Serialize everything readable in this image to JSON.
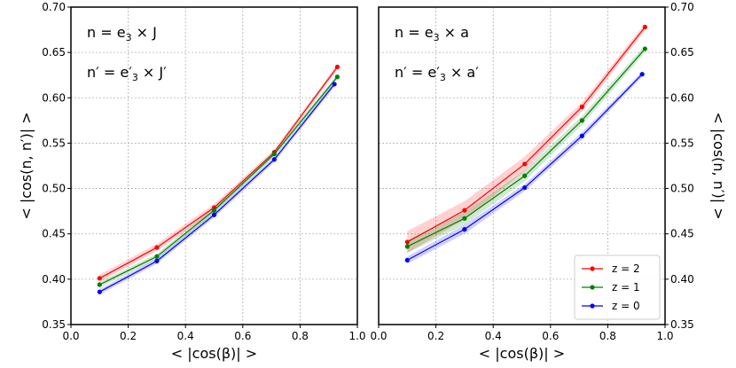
{
  "chart_data": [
    {
      "type": "line",
      "panel": "left",
      "xlabel": "< |cos(β)| >",
      "ylabel": "< |cos(n,  n′)| >",
      "ylabel_side": "left",
      "xlim": [
        0.0,
        1.0
      ],
      "ylim": [
        0.35,
        0.7
      ],
      "xticks": [
        "0.0",
        "0.2",
        "0.4",
        "0.6",
        "0.8",
        "1.0"
      ],
      "yticks": [
        "0.35",
        "0.40",
        "0.45",
        "0.50",
        "0.55",
        "0.60",
        "0.65",
        "0.70"
      ],
      "grid": true,
      "annotations": {
        "line1": {
          "lhs": "n = e",
          "sub": "3",
          "rhs": " × J"
        },
        "line2": {
          "lhs": "n′ = e′",
          "sub": "3",
          "rhs": " × J′"
        }
      },
      "series": [
        {
          "name": "z = 2",
          "color": "#ff0000",
          "x": [
            0.1,
            0.3,
            0.5,
            0.71,
            0.93
          ],
          "y": [
            0.401,
            0.435,
            0.479,
            0.54,
            0.634
          ],
          "band": [
            0.004,
            0.004,
            0.004,
            0.003,
            0.003
          ]
        },
        {
          "name": "z = 1",
          "color": "#008000",
          "x": [
            0.1,
            0.3,
            0.5,
            0.71,
            0.93
          ],
          "y": [
            0.394,
            0.425,
            0.476,
            0.538,
            0.623
          ],
          "band": [
            0.003,
            0.003,
            0.003,
            0.003,
            0.003
          ]
        },
        {
          "name": "z = 0",
          "color": "#0000ff",
          "x": [
            0.1,
            0.3,
            0.5,
            0.71,
            0.92
          ],
          "y": [
            0.386,
            0.42,
            0.471,
            0.532,
            0.615
          ],
          "band": [
            0.003,
            0.003,
            0.003,
            0.003,
            0.003
          ]
        }
      ]
    },
    {
      "type": "line",
      "panel": "right",
      "xlabel": "< |cos(β)| >",
      "ylabel": "< |cos(n,  n′)| >",
      "ylabel_side": "right",
      "xlim": [
        0.0,
        1.0
      ],
      "ylim": [
        0.35,
        0.7
      ],
      "xticks": [
        "0.0",
        "0.2",
        "0.4",
        "0.6",
        "0.8",
        "1.0"
      ],
      "yticks": [
        "0.35",
        "0.40",
        "0.45",
        "0.50",
        "0.55",
        "0.60",
        "0.65",
        "0.70"
      ],
      "grid": true,
      "legend_position": "bottom-right",
      "annotations": {
        "line1": {
          "lhs": "n = e",
          "sub": "3",
          "rhs": " × a"
        },
        "line2": {
          "lhs": "n′ = e′",
          "sub": "3",
          "rhs": " × a′"
        }
      },
      "series": [
        {
          "name": "z = 2",
          "color": "#ff0000",
          "x": [
            0.1,
            0.3,
            0.51,
            0.71,
            0.93
          ],
          "y": [
            0.441,
            0.476,
            0.527,
            0.59,
            0.678
          ],
          "band": [
            0.012,
            0.01,
            0.008,
            0.005,
            0.004
          ]
        },
        {
          "name": "z = 1",
          "color": "#008000",
          "x": [
            0.1,
            0.3,
            0.51,
            0.71,
            0.93
          ],
          "y": [
            0.436,
            0.467,
            0.514,
            0.575,
            0.654
          ],
          "band": [
            0.007,
            0.007,
            0.006,
            0.005,
            0.004
          ]
        },
        {
          "name": "z = 0",
          "color": "#0000ff",
          "x": [
            0.1,
            0.3,
            0.51,
            0.71,
            0.92
          ],
          "y": [
            0.421,
            0.455,
            0.501,
            0.558,
            0.626
          ],
          "band": [
            0.004,
            0.005,
            0.004,
            0.004,
            0.003
          ]
        }
      ]
    }
  ]
}
